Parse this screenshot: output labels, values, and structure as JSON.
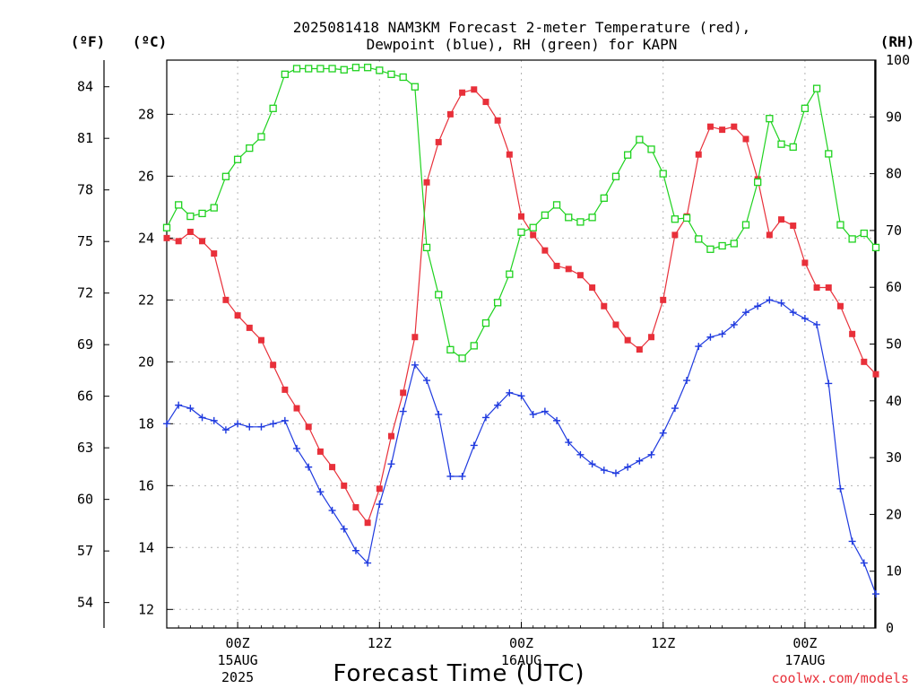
{
  "header": {
    "title_line1": "2025081418 NAM3KM Forecast 2-meter Temperature (red),",
    "title_line2": "Dewpoint (blue), RH (green) for KAPN"
  },
  "axes": {
    "left_f_unit": "(ºF)",
    "left_c_unit": "(ºC)",
    "right_unit": "(RH)",
    "xlabel": "Forecast Time (UTC)"
  },
  "credit": "coolwx.com/models",
  "chart_data": {
    "type": "line",
    "title": "2025081418 NAM3KM Forecast 2-meter Temperature (red), Dewpoint (blue), RH (green) for KAPN",
    "xlabel": "Forecast Time (UTC)",
    "ylabel_left": "(ºC)",
    "ylabel_left_secondary": "(ºF)",
    "ylabel_right": "(RH)",
    "x_unit": "hours from 2025-08-14 18Z",
    "xlim": [
      0,
      60
    ],
    "ylim_celsius": [
      11.4,
      29.75
    ],
    "ylim_rh": [
      0,
      100
    ],
    "grid": true,
    "x_ticks": [
      {
        "hour": 6,
        "label": "00Z",
        "sub1": "15AUG",
        "sub2": "2025"
      },
      {
        "hour": 18,
        "label": "12Z",
        "sub1": "",
        "sub2": ""
      },
      {
        "hour": 30,
        "label": "00Z",
        "sub1": "16AUG",
        "sub2": ""
      },
      {
        "hour": 42,
        "label": "12Z",
        "sub1": "",
        "sub2": ""
      },
      {
        "hour": 54,
        "label": "00Z",
        "sub1": "17AUG",
        "sub2": ""
      }
    ],
    "celsius_ticks": [
      12,
      14,
      16,
      18,
      20,
      22,
      24,
      26,
      28
    ],
    "fahrenheit_ticks": [
      54,
      57,
      60,
      63,
      66,
      69,
      72,
      75,
      78,
      81,
      84
    ],
    "rh_ticks": [
      0,
      10,
      20,
      30,
      40,
      50,
      60,
      70,
      80,
      90,
      100
    ],
    "series": [
      {
        "name": "Temperature",
        "axis": "celsius",
        "color": "#e8303a",
        "marker": "filled-square",
        "values": [
          24.0,
          23.9,
          24.2,
          23.9,
          23.5,
          22.0,
          21.5,
          21.1,
          20.7,
          19.9,
          19.1,
          18.5,
          17.9,
          17.1,
          16.6,
          16.0,
          15.3,
          14.8,
          15.9,
          17.6,
          19.0,
          20.8,
          25.8,
          27.1,
          28.0,
          28.7,
          28.8,
          28.4,
          27.8,
          26.7,
          24.7,
          24.1,
          23.6,
          23.1,
          23.0,
          22.8,
          22.4,
          21.8,
          21.2,
          20.7,
          20.4,
          20.8,
          22.0,
          24.1,
          24.7,
          26.7,
          27.6,
          27.5,
          27.6,
          27.2,
          25.9,
          24.1,
          24.6,
          24.4,
          23.2,
          22.4,
          22.4,
          21.8,
          20.9,
          20.0,
          19.6
        ]
      },
      {
        "name": "Dewpoint",
        "axis": "celsius",
        "color": "#1f3adf",
        "marker": "plus",
        "values": [
          18.0,
          18.6,
          18.5,
          18.2,
          18.1,
          17.8,
          18.0,
          17.9,
          17.9,
          18.0,
          18.1,
          17.2,
          16.6,
          15.8,
          15.2,
          14.6,
          13.9,
          13.5,
          15.4,
          16.7,
          18.4,
          19.9,
          19.4,
          18.3,
          16.3,
          16.3,
          17.3,
          18.2,
          18.6,
          19.0,
          18.9,
          18.3,
          18.4,
          18.1,
          17.4,
          17.0,
          16.7,
          16.5,
          16.4,
          16.6,
          16.8,
          17.0,
          17.7,
          18.5,
          19.4,
          20.5,
          20.8,
          20.9,
          21.2,
          21.6,
          21.8,
          22.0,
          21.9,
          21.6,
          21.4,
          21.2,
          19.3,
          15.9,
          14.2,
          13.5,
          12.5
        ]
      },
      {
        "name": "RH",
        "axis": "rh",
        "color": "#1fd21f",
        "marker": "open-square",
        "values": [
          70.5,
          74.5,
          72.5,
          73.0,
          74.0,
          79.5,
          82.5,
          84.5,
          86.5,
          91.5,
          97.5,
          98.5,
          98.5,
          98.5,
          98.5,
          98.3,
          98.7,
          98.7,
          98.2,
          97.5,
          97.0,
          95.3,
          67.0,
          58.7,
          49.0,
          47.5,
          49.7,
          53.7,
          57.3,
          62.3,
          69.7,
          70.5,
          72.7,
          74.5,
          72.3,
          71.5,
          72.3,
          75.7,
          79.5,
          83.3,
          86.0,
          84.3,
          80.0,
          72.0,
          72.2,
          68.5,
          66.7,
          67.3,
          67.7,
          71.0,
          78.5,
          89.7,
          85.2,
          84.7,
          91.5,
          95.0,
          83.5,
          71.0,
          68.5,
          69.5,
          67.0
        ]
      }
    ]
  }
}
